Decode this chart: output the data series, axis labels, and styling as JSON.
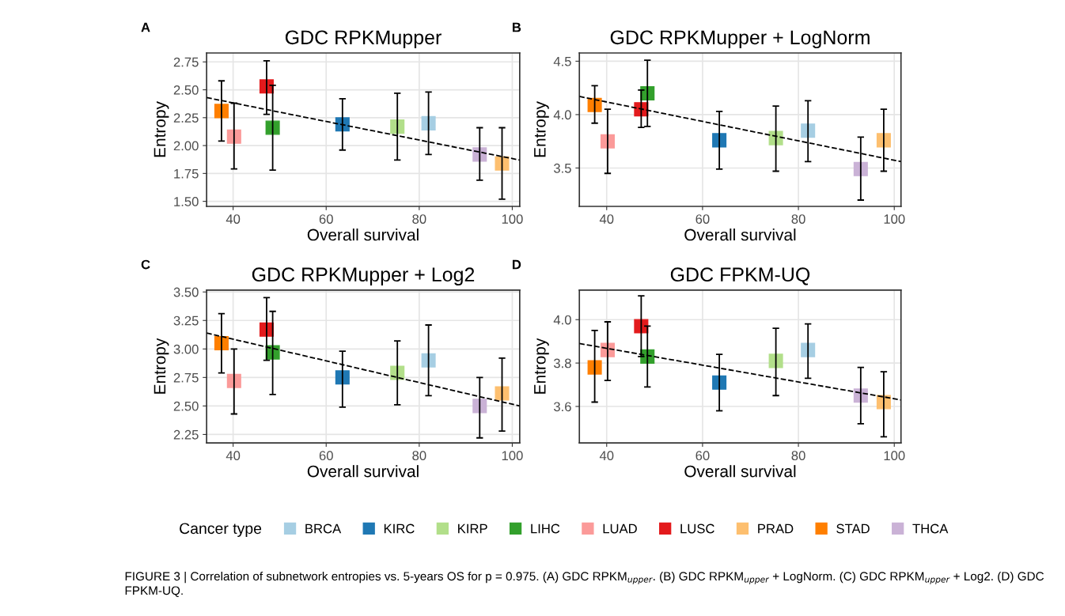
{
  "chart_data": [
    {
      "type": "scatter",
      "title": "GDC RPKMupper",
      "xlabel": "Overall survival",
      "ylabel": "Entropy",
      "legend": "bottom",
      "legend_title": "Cancer type",
      "marker": "square",
      "grid": true,
      "xlim": [
        34.3,
        101.6
      ],
      "xticks": [
        40,
        60,
        80,
        100
      ],
      "ylim": [
        1.455,
        2.83
      ],
      "yticks": [
        {
          "value": 1.5,
          "label": "1.50"
        },
        {
          "value": 1.75,
          "label": "1.75"
        },
        {
          "value": 2.0,
          "label": "2.00"
        },
        {
          "value": 2.25,
          "label": "2.25"
        },
        {
          "value": 2.5,
          "label": "2.50"
        },
        {
          "value": 2.75,
          "label": "2.75"
        }
      ],
      "annotations": [
        "A",
        "FIGURE 3 | Correlation of subnetwork entropies vs. 5-years OS for p = 0.975. (A) GDC RPKM$_{upper}$. (B) GDC RPKM$_{upper}$ + LogNorm. (C) GDC RPKM$_{upper}$ + Log2. (D) GDC FPKM-UQ."
      ],
      "series": [
        {
          "name": "BRCA",
          "color": "#a6cee3",
          "x": [
            82
          ],
          "values": [
            2.2
          ],
          "errors": [
            [
              1.92,
              2.48
            ]
          ]
        },
        {
          "name": "KIRC",
          "color": "#1f78b4",
          "x": [
            63.5
          ],
          "values": [
            2.19
          ],
          "errors": [
            [
              1.96,
              2.42
            ]
          ]
        },
        {
          "name": "KIRP",
          "color": "#b2df8a",
          "x": [
            75.3
          ],
          "values": [
            2.17
          ],
          "errors": [
            [
              1.87,
              2.47
            ]
          ]
        },
        {
          "name": "LIHC",
          "color": "#33a02c",
          "x": [
            48.5
          ],
          "values": [
            2.16
          ],
          "errors": [
            [
              1.78,
              2.54
            ]
          ]
        },
        {
          "name": "LUAD",
          "color": "#fb9a99",
          "x": [
            40.2
          ],
          "values": [
            2.08
          ],
          "errors": [
            [
              1.79,
              2.38
            ]
          ]
        },
        {
          "name": "LUSC",
          "color": "#e31a1c",
          "x": [
            47.2
          ],
          "values": [
            2.53
          ],
          "errors": [
            [
              2.28,
              2.76
            ]
          ]
        },
        {
          "name": "PRAD",
          "color": "#fdbf6f",
          "x": [
            97.8
          ],
          "values": [
            1.84
          ],
          "errors": [
            [
              1.52,
              2.16
            ]
          ]
        },
        {
          "name": "STAD",
          "color": "#ff7f00",
          "x": [
            37.5
          ],
          "values": [
            2.31
          ],
          "errors": [
            [
              2.04,
              2.58
            ]
          ]
        },
        {
          "name": "THCA",
          "color": "#cab2d6",
          "x": [
            93
          ],
          "values": [
            1.92
          ],
          "errors": [
            [
              1.69,
              2.16
            ]
          ]
        },
        {
          "type": "line",
          "color": "#000000",
          "line_style": "dashed",
          "marker": "none",
          "x": [
            34.3,
            101.6
          ],
          "values": [
            2.43,
            1.87
          ]
        }
      ]
    },
    {
      "type": "scatter",
      "title": "GDC RPKMupper + LogNorm",
      "xlabel": "Overall survival",
      "ylabel": "Entropy",
      "marker": "square",
      "grid": true,
      "xlim": [
        34.3,
        101.4
      ],
      "xticks": [
        40,
        60,
        80,
        100
      ],
      "ylim": [
        3.141,
        4.577
      ],
      "yticks": [
        3.5,
        {
          "value": 4.0,
          "label": "4.0"
        },
        4.5
      ],
      "annotations": [
        "B"
      ],
      "series": [
        {
          "color": "#a6cee3",
          "x": [
            82
          ],
          "values": [
            3.85
          ],
          "errors": [
            [
              3.56,
              4.13
            ]
          ]
        },
        {
          "color": "#1f78b4",
          "x": [
            63.5
          ],
          "values": [
            3.76
          ],
          "errors": [
            [
              3.49,
              4.03
            ]
          ]
        },
        {
          "color": "#b2df8a",
          "x": [
            75.3
          ],
          "values": [
            3.78
          ],
          "errors": [
            [
              3.47,
              4.08
            ]
          ]
        },
        {
          "color": "#33a02c",
          "x": [
            48.5
          ],
          "values": [
            4.2
          ],
          "errors": [
            [
              3.89,
              4.51
            ]
          ]
        },
        {
          "color": "#fb9a99",
          "x": [
            40.2
          ],
          "values": [
            3.75
          ],
          "errors": [
            [
              3.45,
              4.05
            ]
          ]
        },
        {
          "color": "#e31a1c",
          "x": [
            47.2
          ],
          "values": [
            4.05
          ],
          "errors": [
            [
              3.88,
              4.23
            ]
          ]
        },
        {
          "color": "#fdbf6f",
          "x": [
            97.8
          ],
          "values": [
            3.76
          ],
          "errors": [
            [
              3.47,
              4.05
            ]
          ]
        },
        {
          "color": "#ff7f00",
          "x": [
            37.5
          ],
          "values": [
            4.09
          ],
          "errors": [
            [
              3.92,
              4.27
            ]
          ]
        },
        {
          "color": "#cab2d6",
          "x": [
            93
          ],
          "values": [
            3.49
          ],
          "errors": [
            [
              3.2,
              3.79
            ]
          ]
        },
        {
          "type": "line",
          "color": "#000000",
          "line_style": "dashed",
          "marker": "none",
          "x": [
            34.3,
            101.4
          ],
          "values": [
            4.17,
            3.56
          ]
        }
      ]
    },
    {
      "type": "scatter",
      "title": "GDC RPKMupper + Log2",
      "xlabel": "Overall survival",
      "ylabel": "Entropy",
      "marker": "square",
      "grid": true,
      "xlim": [
        34.3,
        101.6
      ],
      "xticks": [
        40,
        60,
        80,
        100
      ],
      "ylim": [
        2.176,
        3.516
      ],
      "yticks": [
        {
          "value": 2.25,
          "label": "2.25"
        },
        {
          "value": 2.5,
          "label": "2.50"
        },
        {
          "value": 2.75,
          "label": "2.75"
        },
        {
          "value": 3.0,
          "label": "3.00"
        },
        {
          "value": 3.25,
          "label": "3.25"
        },
        {
          "value": 3.5,
          "label": "3.50"
        }
      ],
      "annotations": [
        "C"
      ],
      "series": [
        {
          "color": "#a6cee3",
          "x": [
            82
          ],
          "values": [
            2.9
          ],
          "errors": [
            [
              2.59,
              3.21
            ]
          ]
        },
        {
          "color": "#1f78b4",
          "x": [
            63.5
          ],
          "values": [
            2.75
          ],
          "errors": [
            [
              2.49,
              2.98
            ]
          ]
        },
        {
          "color": "#b2df8a",
          "x": [
            75.3
          ],
          "values": [
            2.79
          ],
          "errors": [
            [
              2.51,
              3.07
            ]
          ]
        },
        {
          "color": "#33a02c",
          "x": [
            48.5
          ],
          "values": [
            2.97
          ],
          "errors": [
            [
              2.6,
              3.33
            ]
          ]
        },
        {
          "color": "#fb9a99",
          "x": [
            40.2
          ],
          "values": [
            2.72
          ],
          "errors": [
            [
              2.43,
              3.0
            ]
          ]
        },
        {
          "color": "#e31a1c",
          "x": [
            47.2
          ],
          "values": [
            3.17
          ],
          "errors": [
            [
              2.9,
              3.45
            ]
          ]
        },
        {
          "color": "#fdbf6f",
          "x": [
            97.8
          ],
          "values": [
            2.61
          ],
          "errors": [
            [
              2.28,
              2.92
            ]
          ]
        },
        {
          "color": "#ff7f00",
          "x": [
            37.5
          ],
          "values": [
            3.05
          ],
          "errors": [
            [
              2.79,
              3.31
            ]
          ]
        },
        {
          "color": "#cab2d6",
          "x": [
            93
          ],
          "values": [
            2.5
          ],
          "errors": [
            [
              2.22,
              2.75
            ]
          ]
        },
        {
          "type": "line",
          "color": "#000000",
          "line_style": "dashed",
          "marker": "none",
          "x": [
            34.3,
            101.6
          ],
          "values": [
            3.14,
            2.5
          ]
        }
      ]
    },
    {
      "type": "scatter",
      "title": "GDC FPKM-UQ",
      "xlabel": "Overall survival",
      "ylabel": "Entropy",
      "marker": "square",
      "grid": true,
      "xlim": [
        34.3,
        101.4
      ],
      "xticks": [
        40,
        60,
        80,
        100
      ],
      "ylim": [
        3.432,
        4.136
      ],
      "yticks": [
        3.6,
        3.8,
        {
          "value": 4.0,
          "label": "4.0"
        }
      ],
      "annotations": [
        "D"
      ],
      "series": [
        {
          "color": "#a6cee3",
          "x": [
            82
          ],
          "values": [
            3.86
          ],
          "errors": [
            [
              3.73,
              3.98
            ]
          ]
        },
        {
          "color": "#1f78b4",
          "x": [
            63.5
          ],
          "values": [
            3.71
          ],
          "errors": [
            [
              3.58,
              3.84
            ]
          ]
        },
        {
          "color": "#b2df8a",
          "x": [
            75.3
          ],
          "values": [
            3.81
          ],
          "errors": [
            [
              3.65,
              3.96
            ]
          ]
        },
        {
          "color": "#33a02c",
          "x": [
            48.5
          ],
          "values": [
            3.83
          ],
          "errors": [
            [
              3.69,
              3.97
            ]
          ]
        },
        {
          "color": "#fb9a99",
          "x": [
            40.2
          ],
          "values": [
            3.86
          ],
          "errors": [
            [
              3.72,
              3.99
            ]
          ]
        },
        {
          "color": "#e31a1c",
          "x": [
            47.2
          ],
          "values": [
            3.97
          ],
          "errors": [
            [
              3.83,
              4.11
            ]
          ]
        },
        {
          "color": "#fdbf6f",
          "x": [
            97.8
          ],
          "values": [
            3.62
          ],
          "errors": [
            [
              3.46,
              3.76
            ]
          ]
        },
        {
          "color": "#ff7f00",
          "x": [
            37.5
          ],
          "values": [
            3.78
          ],
          "errors": [
            [
              3.62,
              3.95
            ]
          ]
        },
        {
          "color": "#cab2d6",
          "x": [
            93
          ],
          "values": [
            3.65
          ],
          "errors": [
            [
              3.52,
              3.78
            ]
          ]
        },
        {
          "type": "line",
          "color": "#000000",
          "line_style": "dashed",
          "marker": "none",
          "x": [
            34.3,
            101.4
          ],
          "values": [
            3.89,
            3.63
          ]
        }
      ]
    }
  ]
}
